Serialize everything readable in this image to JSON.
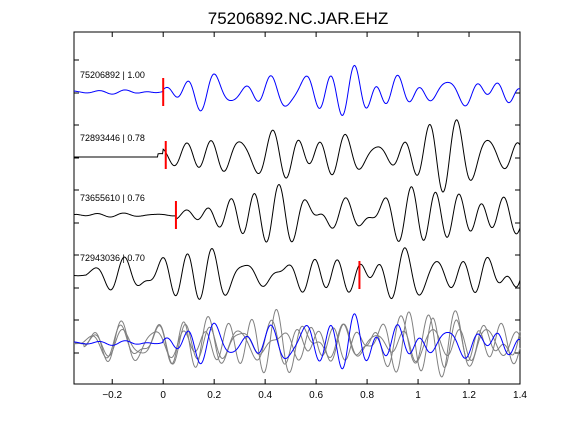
{
  "chart_data": {
    "type": "line",
    "title": "75206892.NC.JAR.EHZ",
    "xlabel": "",
    "ylabel": "",
    "xlim": [
      -0.35,
      1.4
    ],
    "x_ticks": [
      -0.2,
      0,
      0.2,
      0.4,
      0.6,
      0.8,
      1,
      1.2,
      1.4
    ],
    "x_tick_labels": [
      "−0.2",
      "0",
      "0.2",
      "0.4",
      "0.6",
      "0.8",
      "1",
      "1.2",
      "1.4"
    ],
    "grid": false,
    "legend": "none",
    "colors": {
      "reference": "#0000ff",
      "trace": "#000000",
      "overlay": "#808080",
      "pick": "#ff0000"
    },
    "series": [
      {
        "label": "75206892 | 1.00",
        "pick_time": 0.0,
        "color": "#0000ff"
      },
      {
        "label": "72893446 | 0.78",
        "pick_time": 0.01,
        "color": "#000000"
      },
      {
        "label": "73655610 | 0.76",
        "pick_time": 0.05,
        "color": "#000000"
      },
      {
        "label": "72943036 | 0.70",
        "pick_time": 0.77,
        "color": "#000000"
      }
    ],
    "overlay_stack": true
  }
}
